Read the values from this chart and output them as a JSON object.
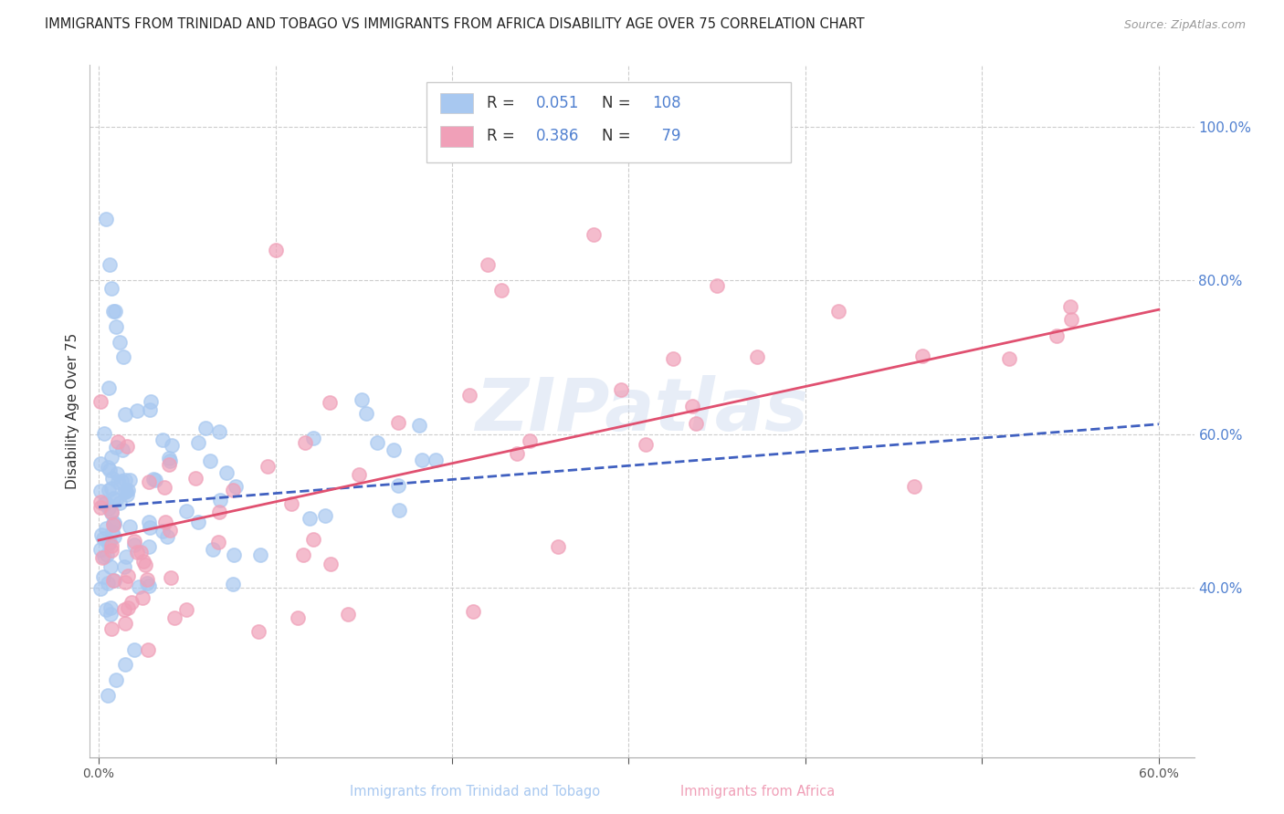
{
  "title": "IMMIGRANTS FROM TRINIDAD AND TOBAGO VS IMMIGRANTS FROM AFRICA DISABILITY AGE OVER 75 CORRELATION CHART",
  "source": "Source: ZipAtlas.com",
  "ylabel": "Disability Age Over 75",
  "xlabel_blue": "Immigrants from Trinidad and Tobago",
  "xlabel_pink": "Immigrants from Africa",
  "xlim": [
    -0.005,
    0.62
  ],
  "ylim": [
    0.18,
    1.08
  ],
  "yticks": [
    0.4,
    0.6,
    0.8,
    1.0
  ],
  "xticks": [
    0.0,
    0.1,
    0.2,
    0.3,
    0.4,
    0.5,
    0.6
  ],
  "ytick_labels": [
    "40.0%",
    "60.0%",
    "80.0%",
    "100.0%"
  ],
  "xtick_labels_show": [
    "0.0%",
    "60.0%"
  ],
  "blue_color": "#a8c8f0",
  "pink_color": "#f0a0b8",
  "blue_line_color": "#4060c0",
  "pink_line_color": "#e05070",
  "R_blue": 0.051,
  "N_blue": 108,
  "R_pink": 0.386,
  "N_pink": 79,
  "title_fontsize": 10.5,
  "watermark": "ZIPatlas",
  "background_color": "#ffffff",
  "grid_color": "#cccccc",
  "right_axis_color": "#5080d0"
}
